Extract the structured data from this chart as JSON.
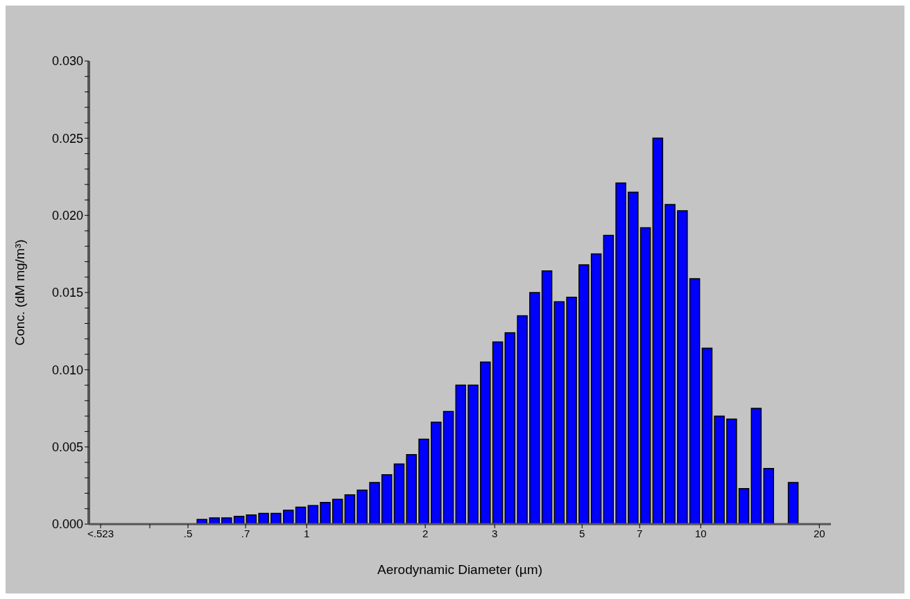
{
  "chart_data": {
    "type": "bar",
    "xlabel": "Aerodynamic Diameter (µm)",
    "ylabel": "Conc. (dM mg/m³)",
    "x": [
      0.3,
      0.542,
      0.583,
      0.626,
      0.673,
      0.723,
      0.777,
      0.835,
      0.898,
      0.965,
      1.037,
      1.114,
      1.197,
      1.286,
      1.382,
      1.486,
      1.596,
      1.715,
      1.843,
      1.981,
      2.129,
      2.288,
      2.458,
      2.642,
      2.839,
      3.051,
      3.278,
      3.523,
      3.786,
      4.068,
      4.371,
      4.698,
      5.048,
      5.425,
      5.829,
      6.264,
      6.732,
      7.234,
      7.774,
      8.354,
      8.977,
      9.647,
      10.37,
      11.14,
      11.97,
      12.86,
      13.82,
      14.86,
      15.96,
      17.15,
      18.43,
      19.81
    ],
    "values": [
      0,
      0.0003,
      0.0004,
      0.0004,
      0.0005,
      0.0006,
      0.0007,
      0.0007,
      0.0009,
      0.0011,
      0.0012,
      0.0014,
      0.0016,
      0.0019,
      0.0022,
      0.0027,
      0.0032,
      0.0039,
      0.0045,
      0.0055,
      0.0066,
      0.0073,
      0.009,
      0.009,
      0.0105,
      0.0118,
      0.0124,
      0.0135,
      0.015,
      0.0164,
      0.0144,
      0.0147,
      0.0168,
      0.0175,
      0.0187,
      0.0221,
      0.0215,
      0.0192,
      0.025,
      0.0207,
      0.0203,
      0.0159,
      0.0114,
      0.007,
      0.0068,
      0.0023,
      0.0075,
      0.0036,
      0,
      0.0027,
      0,
      0
    ],
    "color": "#0000ff",
    "log": "x",
    "grid": false,
    "legend": false,
    "xlim": [
      0.28,
      21.4
    ],
    "xticks": [
      {
        "value": 0.3,
        "label": "<.523"
      },
      {
        "value": 0.4,
        "label": null
      },
      {
        "value": 0.5,
        "label": ".5"
      },
      {
        "value": 0.7,
        "label": ".7"
      },
      1,
      2,
      3,
      5,
      7,
      10,
      20
    ],
    "ylim": [
      0,
      0.03
    ],
    "yticks": [
      {
        "value": 0,
        "label": "0.000"
      },
      {
        "value": 0.001,
        "label": null
      },
      {
        "value": 0.002,
        "label": null
      },
      {
        "value": 0.003,
        "label": null
      },
      {
        "value": 0.004,
        "label": null
      },
      {
        "value": 0.005,
        "label": "0.005"
      },
      {
        "value": 0.006,
        "label": null
      },
      {
        "value": 0.007,
        "label": null
      },
      {
        "value": 0.008,
        "label": null
      },
      {
        "value": 0.009,
        "label": null
      },
      {
        "value": 0.01,
        "label": "0.010"
      },
      {
        "value": 0.011,
        "label": null
      },
      {
        "value": 0.012,
        "label": null
      },
      {
        "value": 0.013,
        "label": null
      },
      {
        "value": 0.014,
        "label": null
      },
      {
        "value": 0.015,
        "label": "0.015"
      },
      {
        "value": 0.016,
        "label": null
      },
      {
        "value": 0.017,
        "label": null
      },
      {
        "value": 0.018,
        "label": null
      },
      {
        "value": 0.019,
        "label": null
      },
      {
        "value": 0.02,
        "label": "0.020"
      },
      {
        "value": 0.021,
        "label": null
      },
      {
        "value": 0.022,
        "label": null
      },
      {
        "value": 0.023,
        "label": null
      },
      {
        "value": 0.024,
        "label": null
      },
      {
        "value": 0.025,
        "label": "0.025"
      },
      {
        "value": 0.026,
        "label": null
      },
      {
        "value": 0.027,
        "label": null
      },
      {
        "value": 0.028,
        "label": null
      },
      {
        "value": 0.029,
        "label": null
      },
      {
        "value": 0.03,
        "label": "0.030"
      }
    ]
  }
}
